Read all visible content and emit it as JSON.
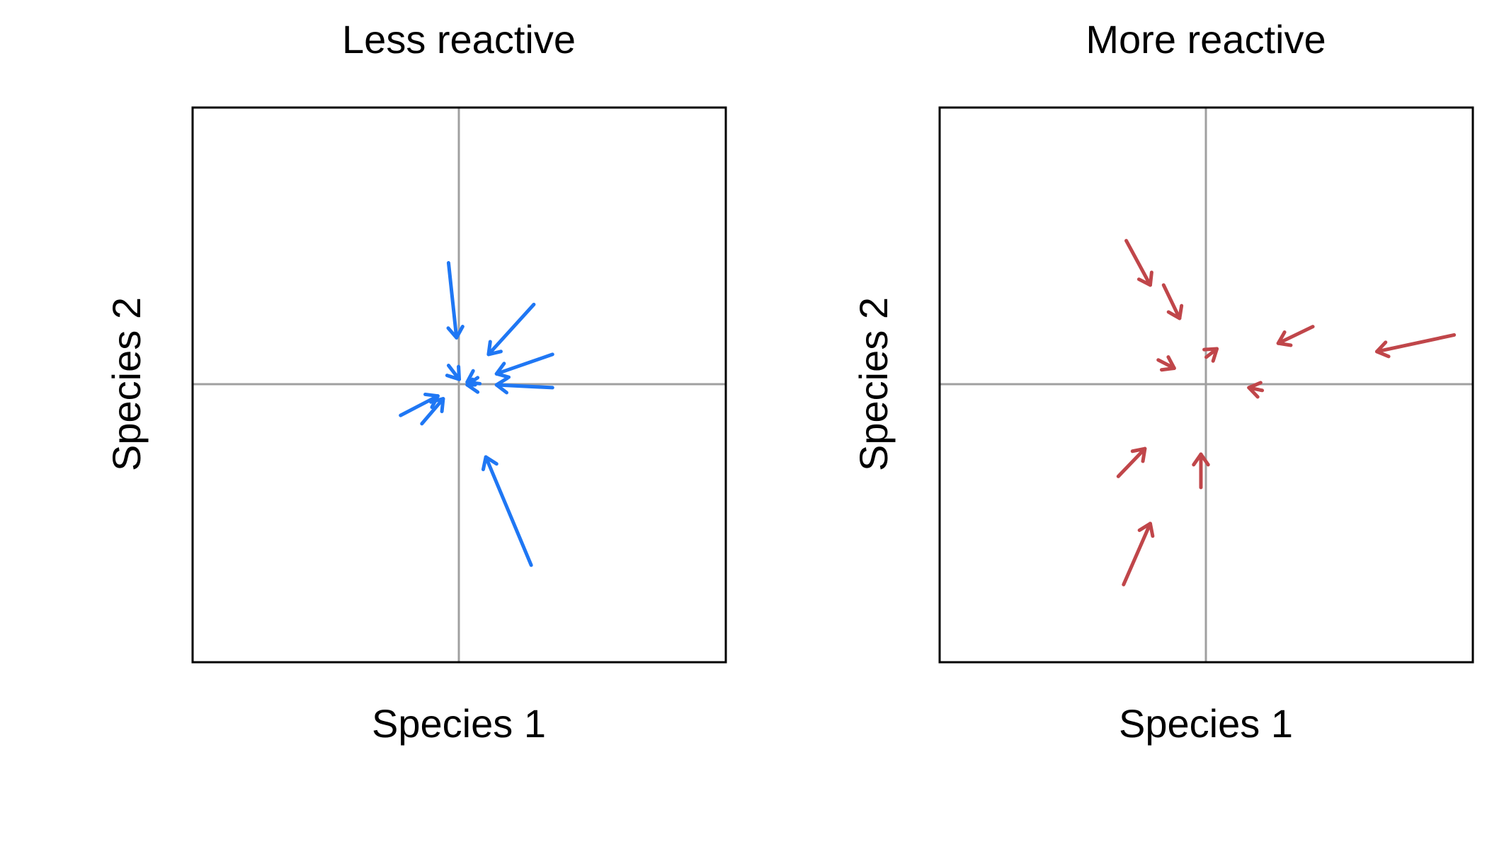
{
  "chart_data": [
    {
      "type": "arrow-field",
      "title": "Less reactive",
      "xlabel": "Species 1",
      "ylabel": "Species 2",
      "xlim": [
        -1,
        1
      ],
      "ylim": [
        -1,
        1
      ],
      "reference_lines": {
        "x": 0,
        "y": 0
      },
      "grid": false,
      "ticks": false,
      "color": "#1f77f4",
      "arrows": [
        {
          "x0": -0.04,
          "y0": 0.44,
          "x1": -0.01,
          "y1": 0.17
        },
        {
          "x0": -0.04,
          "y0": 0.07,
          "x1": 0.0,
          "y1": 0.02
        },
        {
          "x0": 0.28,
          "y0": 0.29,
          "x1": 0.11,
          "y1": 0.11
        },
        {
          "x0": 0.35,
          "y0": 0.11,
          "x1": 0.14,
          "y1": 0.04
        },
        {
          "x0": 0.35,
          "y0": -0.01,
          "x1": 0.14,
          "y1": 0.0
        },
        {
          "x0": 0.06,
          "y0": 0.0,
          "x1": 0.03,
          "y1": 0.0
        },
        {
          "x0": 0.05,
          "y0": 0.02,
          "x1": 0.03,
          "y1": 0.01
        },
        {
          "x0": -0.22,
          "y0": -0.11,
          "x1": -0.08,
          "y1": -0.04
        },
        {
          "x0": -0.14,
          "y0": -0.14,
          "x1": -0.06,
          "y1": -0.05
        },
        {
          "x0": 0.27,
          "y0": -0.65,
          "x1": 0.1,
          "y1": -0.26
        }
      ]
    },
    {
      "type": "arrow-field",
      "title": "More reactive",
      "xlabel": "Species 1",
      "ylabel": "Species 2",
      "xlim": [
        -1,
        1
      ],
      "ylim": [
        -1,
        1
      ],
      "reference_lines": {
        "x": 0,
        "y": 0
      },
      "grid": false,
      "ticks": false,
      "color": "#c0464a",
      "arrows": [
        {
          "x0": -0.3,
          "y0": 0.52,
          "x1": -0.21,
          "y1": 0.36
        },
        {
          "x0": -0.16,
          "y0": 0.36,
          "x1": -0.1,
          "y1": 0.24
        },
        {
          "x0": -0.18,
          "y0": 0.09,
          "x1": -0.12,
          "y1": 0.06
        },
        {
          "x0": 0.0,
          "y0": 0.1,
          "x1": 0.04,
          "y1": 0.13
        },
        {
          "x0": 0.4,
          "y0": 0.21,
          "x1": 0.27,
          "y1": 0.15
        },
        {
          "x0": 0.93,
          "y0": 0.18,
          "x1": 0.64,
          "y1": 0.12
        },
        {
          "x0": 0.21,
          "y0": -0.02,
          "x1": 0.16,
          "y1": -0.01
        },
        {
          "x0": -0.33,
          "y0": -0.33,
          "x1": -0.23,
          "y1": -0.23
        },
        {
          "x0": -0.02,
          "y0": -0.37,
          "x1": -0.02,
          "y1": -0.25
        },
        {
          "x0": -0.31,
          "y0": -0.72,
          "x1": -0.21,
          "y1": -0.5
        }
      ]
    }
  ]
}
